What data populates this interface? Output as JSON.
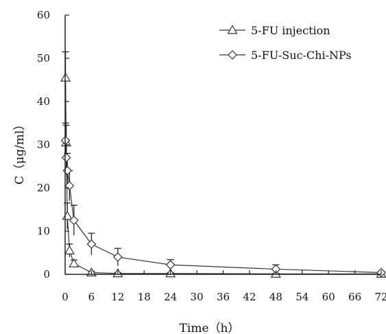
{
  "chart_data": {
    "type": "line",
    "xlabel": "Time（h）",
    "ylabel": "C（μg/ml）",
    "xlim": [
      0,
      72
    ],
    "ylim": [
      0,
      60
    ],
    "x_ticks": [
      0,
      6,
      12,
      18,
      24,
      30,
      36,
      42,
      48,
      54,
      60,
      66,
      72
    ],
    "y_ticks": [
      0,
      10,
      20,
      30,
      40,
      50,
      60
    ],
    "grid": false,
    "legend_position": "top-right",
    "series": [
      {
        "name": "5-FU injection",
        "marker": "triangle",
        "color": "#333333",
        "x": [
          0.083,
          0.25,
          0.5,
          1,
          2,
          6,
          12,
          24,
          48,
          72
        ],
        "y": [
          45.5,
          30.5,
          13.5,
          5.5,
          2.5,
          0.4,
          0.2,
          0.2,
          0.1,
          0.1
        ],
        "error": [
          6,
          4,
          3,
          1.5,
          0.8,
          0.3,
          0.2,
          0.2,
          0.1,
          0.1
        ]
      },
      {
        "name": "5-FU-Suc-Chi-NPs",
        "marker": "diamond",
        "color": "#333333",
        "x": [
          0.083,
          0.25,
          0.5,
          1,
          2,
          6,
          12,
          24,
          48,
          72
        ],
        "y": [
          31,
          27,
          24,
          20.5,
          12.5,
          7,
          4,
          2.2,
          1.2,
          0.4
        ],
        "error": [
          4,
          4,
          4,
          3.5,
          3.5,
          2.5,
          2,
          1.2,
          1,
          0.3
        ]
      }
    ]
  }
}
